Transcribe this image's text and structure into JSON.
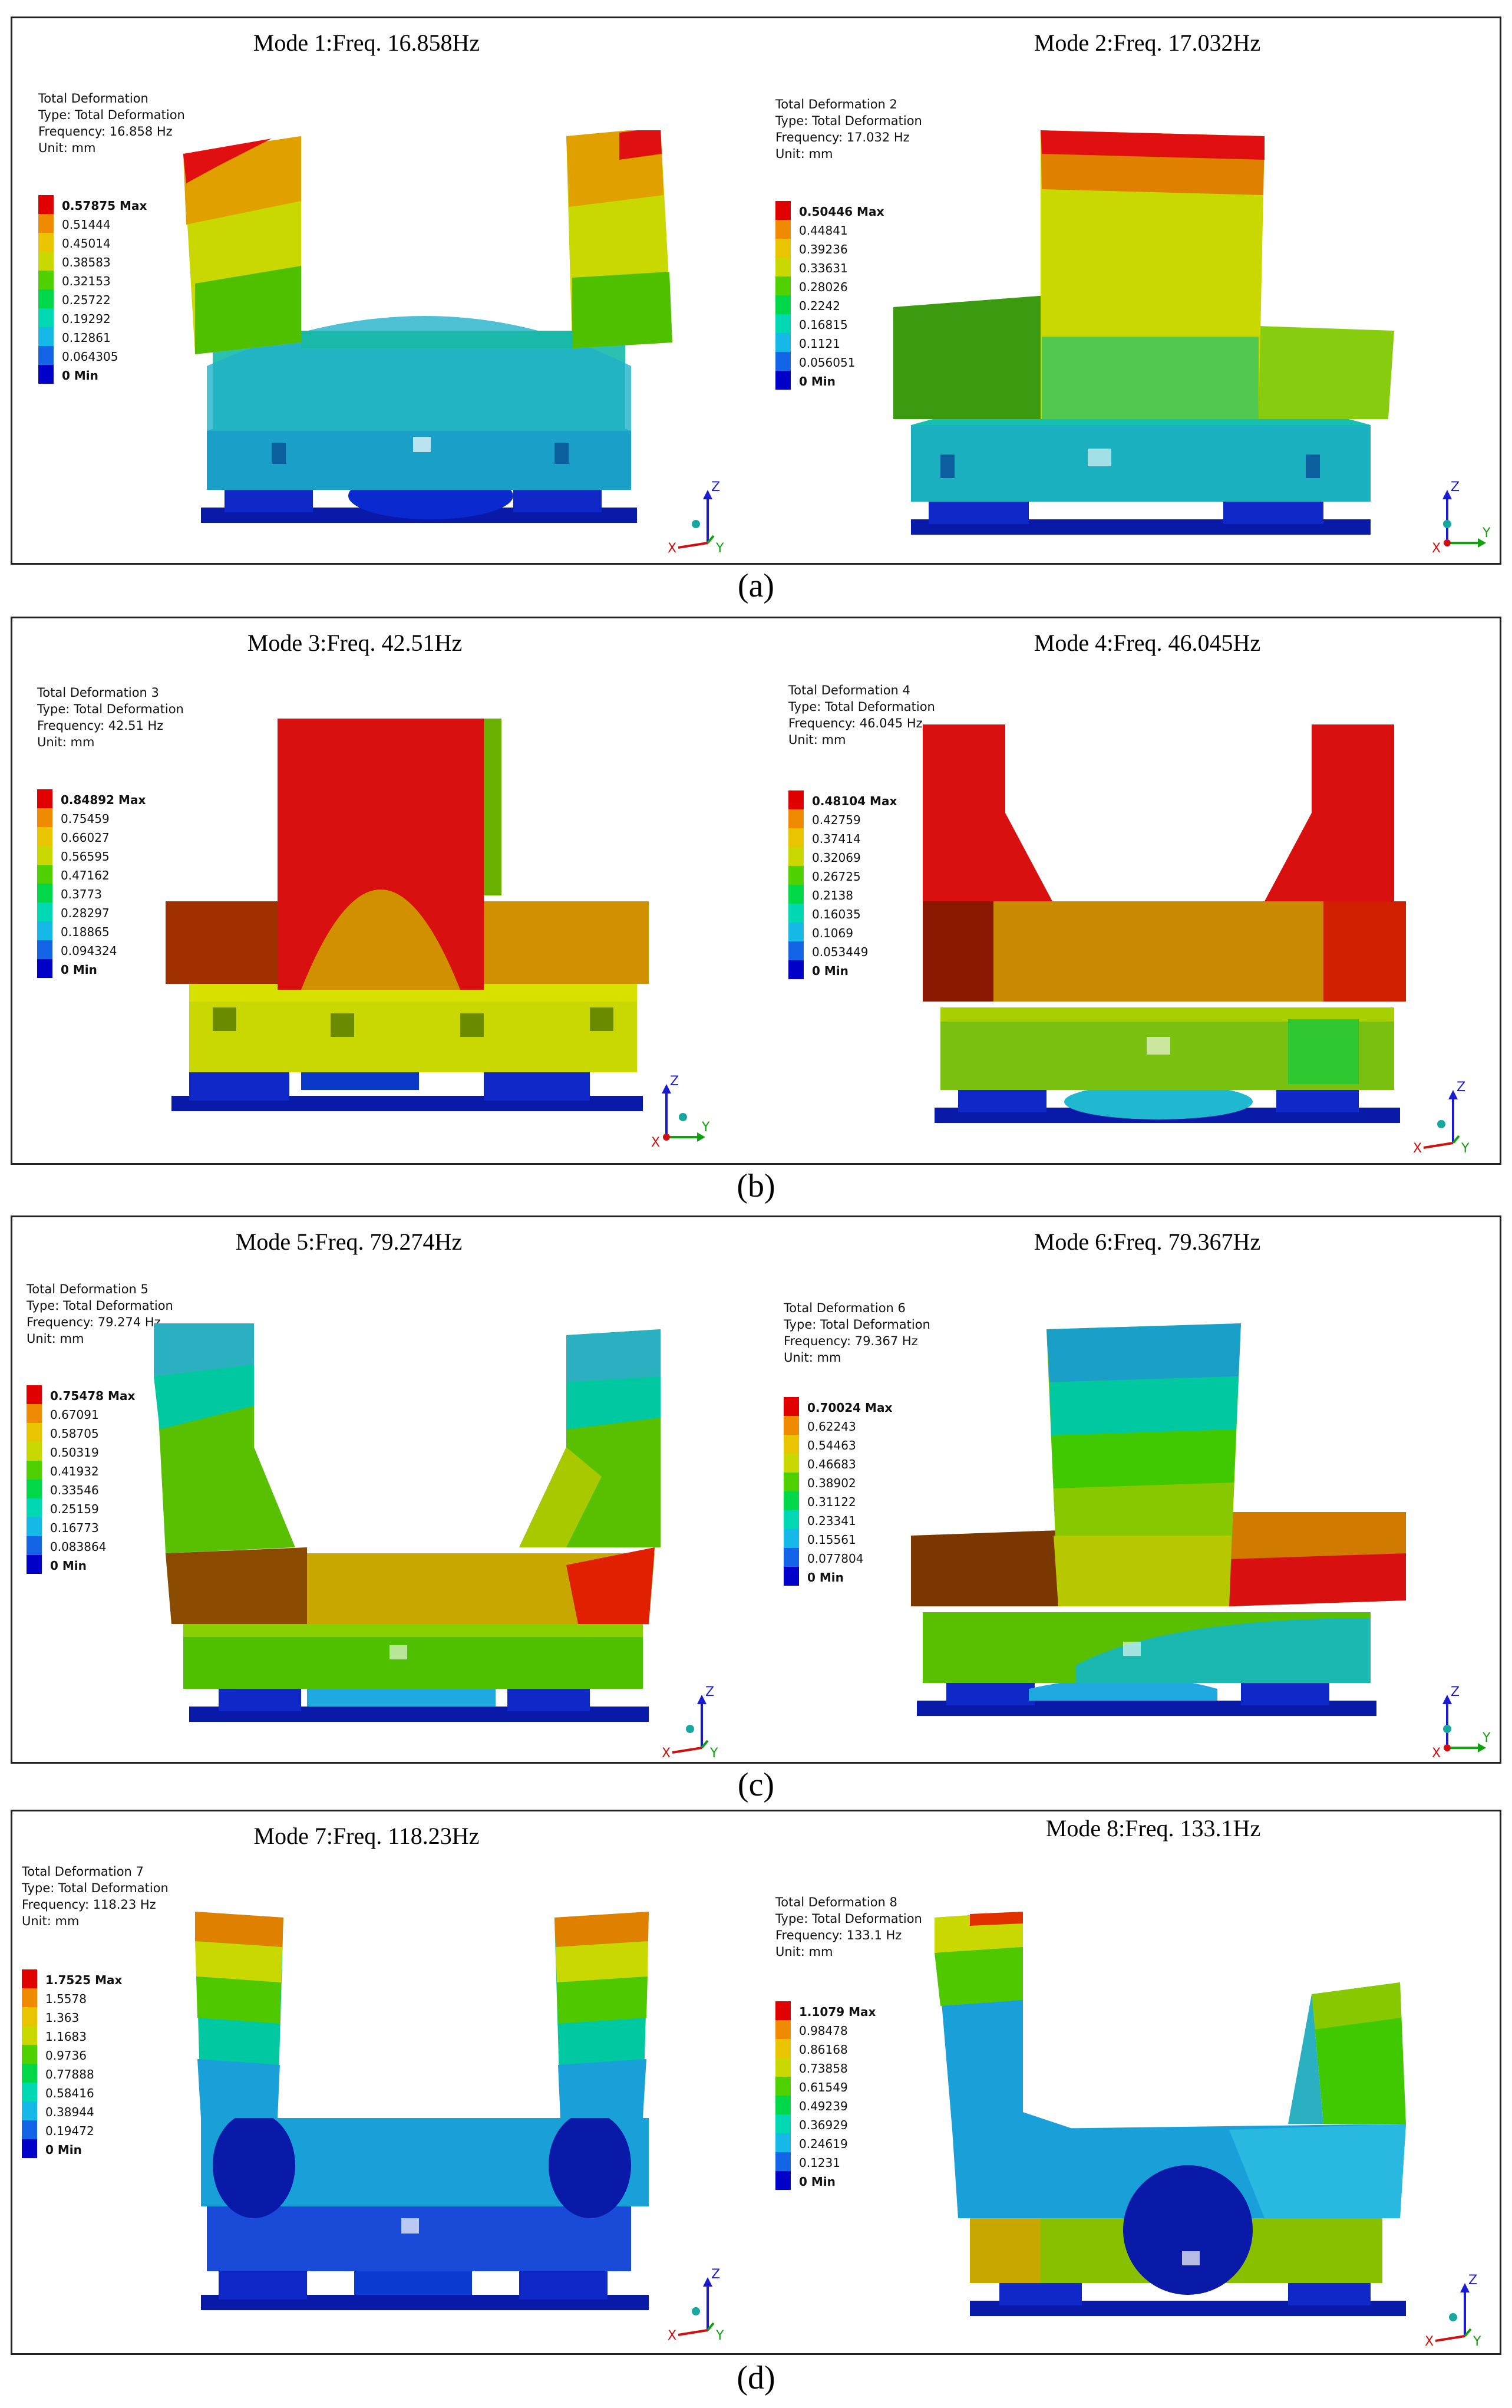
{
  "groups": [
    {
      "caption": "(a)",
      "panels": [
        {
          "title": "Mode 1:Freq. 16.858Hz",
          "info": [
            "Total Deformation",
            "Type: Total Deformation",
            "Frequency: 16.858 Hz",
            "Unit: mm"
          ],
          "legend": [
            "0.57875 Max",
            "0.51444",
            "0.45014",
            "0.38583",
            "0.32153",
            "0.25722",
            "0.19292",
            "0.12861",
            "0.064305",
            "0 Min"
          ],
          "triad": {
            "z": "Z",
            "x": "X",
            "y": "Y"
          }
        },
        {
          "title": "Mode 2:Freq. 17.032Hz",
          "info": [
            "Total Deformation 2",
            "Type: Total Deformation",
            "Frequency: 17.032 Hz",
            "Unit: mm"
          ],
          "legend": [
            "0.50446 Max",
            "0.44841",
            "0.39236",
            "0.33631",
            "0.28026",
            "0.2242",
            "0.16815",
            "0.1121",
            "0.056051",
            "0 Min"
          ],
          "triad": {
            "z": "Z",
            "x": "X",
            "y": "Y"
          }
        }
      ]
    },
    {
      "caption": "(b)",
      "panels": [
        {
          "title": "Mode 3:Freq. 42.51Hz",
          "info": [
            "Total Deformation 3",
            "Type: Total Deformation",
            "Frequency: 42.51 Hz",
            "Unit: mm"
          ],
          "legend": [
            "0.84892 Max",
            "0.75459",
            "0.66027",
            "0.56595",
            "0.47162",
            "0.3773",
            "0.28297",
            "0.18865",
            "0.094324",
            "0 Min"
          ],
          "triad": {
            "z": "Z",
            "x": "X",
            "y": "Y"
          }
        },
        {
          "title": "Mode 4:Freq. 46.045Hz",
          "info": [
            "Total Deformation 4",
            "Type: Total Deformation",
            "Frequency: 46.045 Hz",
            "Unit: mm"
          ],
          "legend": [
            "0.48104 Max",
            "0.42759",
            "0.37414",
            "0.32069",
            "0.26725",
            "0.2138",
            "0.16035",
            "0.1069",
            "0.053449",
            "0 Min"
          ],
          "triad": {
            "z": "Z",
            "x": "X",
            "y": "Y"
          }
        }
      ]
    },
    {
      "caption": "(c)",
      "panels": [
        {
          "title": "Mode 5:Freq. 79.274Hz",
          "info": [
            "Total Deformation 5",
            "Type: Total Deformation",
            "Frequency: 79.274 Hz",
            "Unit: mm"
          ],
          "legend": [
            "0.75478 Max",
            "0.67091",
            "0.58705",
            "0.50319",
            "0.41932",
            "0.33546",
            "0.25159",
            "0.16773",
            "0.083864",
            "0 Min"
          ],
          "triad": {
            "z": "Z",
            "x": "X",
            "y": "Y"
          }
        },
        {
          "title": "Mode 6:Freq. 79.367Hz",
          "info": [
            "Total Deformation 6",
            "Type: Total Deformation",
            "Frequency: 79.367 Hz",
            "Unit: mm"
          ],
          "legend": [
            "0.70024 Max",
            "0.62243",
            "0.54463",
            "0.46683",
            "0.38902",
            "0.31122",
            "0.23341",
            "0.15561",
            "0.077804",
            "0 Min"
          ],
          "triad": {
            "z": "Z",
            "x": "X",
            "y": "Y"
          }
        }
      ]
    },
    {
      "caption": "(d)",
      "panels": [
        {
          "title": "Mode 7:Freq. 118.23Hz",
          "info": [
            "Total Deformation 7",
            "Type: Total Deformation",
            "Frequency: 118.23 Hz",
            "Unit: mm"
          ],
          "legend": [
            "1.7525 Max",
            "1.5578",
            "1.363",
            "1.1683",
            "0.9736",
            "0.77888",
            "0.58416",
            "0.38944",
            "0.19472",
            "0 Min"
          ],
          "triad": {
            "z": "Z",
            "x": "X",
            "y": "Y"
          }
        },
        {
          "title": "Mode 8:Freq. 133.1Hz",
          "info": [
            "Total Deformation 8",
            "Type: Total Deformation",
            "Frequency: 133.1 Hz",
            "Unit: mm"
          ],
          "legend": [
            "1.1079 Max",
            "0.98478",
            "0.86168",
            "0.73858",
            "0.61549",
            "0.49239",
            "0.36929",
            "0.24619",
            "0.1231",
            "0 Min"
          ],
          "triad": {
            "z": "Z",
            "x": "X",
            "y": "Y"
          }
        }
      ]
    }
  ],
  "colors": {
    "legend_scale": [
      "#e00000",
      "#f08a00",
      "#e9c400",
      "#c8d800",
      "#4fd000",
      "#00d84a",
      "#00d8b4",
      "#16b8e8",
      "#1464e8",
      "#0000c8"
    ],
    "frame": "#222222"
  }
}
